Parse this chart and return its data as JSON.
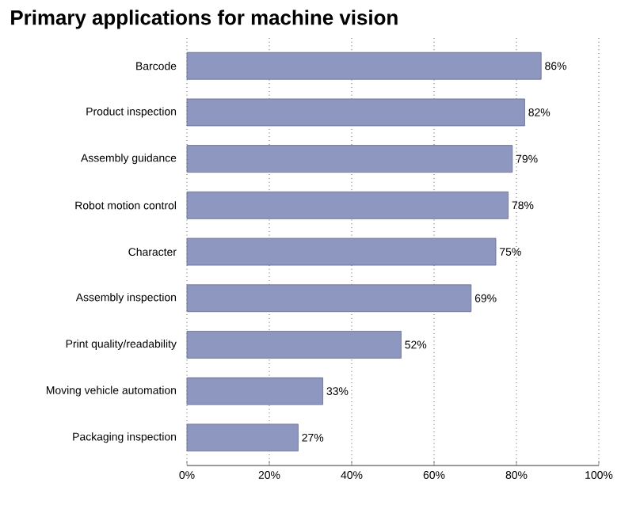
{
  "chart_data": {
    "type": "bar",
    "orientation": "horizontal",
    "title": "Primary applications for machine vision",
    "categories": [
      "Barcode",
      "Product inspection",
      "Assembly guidance",
      "Robot motion control",
      "Character",
      "Assembly inspection",
      "Print quality/readability",
      "Moving vehicle automation",
      "Packaging inspection"
    ],
    "values": [
      86,
      82,
      79,
      78,
      75,
      69,
      52,
      33,
      27
    ],
    "value_labels": [
      "86%",
      "82%",
      "79%",
      "78%",
      "75%",
      "69%",
      "52%",
      "33%",
      "27%"
    ],
    "color": "#8e97c0",
    "xlim": [
      0,
      100
    ],
    "xticks": [
      {
        "value": 0,
        "label": "0%"
      },
      {
        "value": 20,
        "label": "20%"
      },
      {
        "value": 40,
        "label": "40%"
      },
      {
        "value": 60,
        "label": "60%"
      },
      {
        "value": 80,
        "label": "80%"
      },
      {
        "value": 100,
        "label": "100%"
      }
    ],
    "grid": "x"
  }
}
